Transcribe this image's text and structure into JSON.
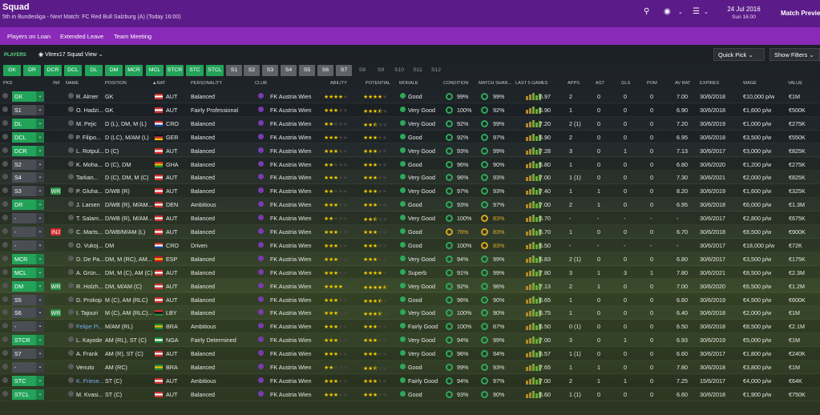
{
  "top": {
    "title": "Squad",
    "subtitle": "5th in Bundesliga - Next Match: FC Red Bull Salzburg (A) (Today 16:00)",
    "date": "24 Jul 2016",
    "day": "Sun 16:00",
    "continue": "Match Previe"
  },
  "subnav": [
    "Players on Loan",
    "Extended Leave",
    "Team Meeting"
  ],
  "toolbar": {
    "label": "PLAYERS",
    "view": "Vitrex17 Squad View",
    "quick_pick": "Quick Pick",
    "show_filters": "Show Filters"
  },
  "filters": [
    {
      "l": "GK",
      "t": "g"
    },
    {
      "l": "DR",
      "t": "g"
    },
    {
      "l": "DCR",
      "t": "g"
    },
    {
      "l": "DCL",
      "t": "g"
    },
    {
      "l": "DL",
      "t": "g"
    },
    {
      "l": "DM",
      "t": "g"
    },
    {
      "l": "MCR",
      "t": "g"
    },
    {
      "l": "MCL",
      "t": "g"
    },
    {
      "l": "STCR",
      "t": "g"
    },
    {
      "l": "STC",
      "t": "g"
    },
    {
      "l": "STCL",
      "t": "g"
    },
    {
      "l": "S1",
      "t": "s"
    },
    {
      "l": "S2",
      "t": "s"
    },
    {
      "l": "S3",
      "t": "s"
    },
    {
      "l": "S4",
      "t": "s"
    },
    {
      "l": "S5",
      "t": "s"
    },
    {
      "l": "S6",
      "t": "s"
    },
    {
      "l": "S7",
      "t": "s"
    },
    {
      "l": "S8",
      "t": "d"
    },
    {
      "l": "S9",
      "t": "d"
    },
    {
      "l": "S10",
      "t": "d"
    },
    {
      "l": "S11",
      "t": "d"
    },
    {
      "l": "S12",
      "t": "d"
    }
  ],
  "headers": [
    "PKD",
    "INF",
    "NAME",
    "POSITION",
    "▲NAT",
    "PERSONALITY",
    "CLUB",
    "ABILITY",
    "POTENTIAL",
    "MORALE",
    "CONDITION",
    "MATCH SHAR...",
    "LAST 5 GAMES",
    "APPS",
    "AST",
    "GLS",
    "POM",
    "AV RAT",
    "EXPIRES",
    "WAGE",
    "VALUE"
  ],
  "players": [
    {
      "sel": "GK",
      "g": 1,
      "inf": "",
      "name": "R. Almer",
      "pos": "GK",
      "nat": "AUT",
      "pers": "Balanced",
      "club": "FK Austria Wien",
      "ab": 4,
      "pot": 4,
      "mor": "Good",
      "cond": "99%",
      "share": "99%",
      "y": 0,
      "last": "6.97",
      "apps": "2",
      "ast": "0",
      "gls": "0",
      "pom": "0",
      "rat": "7.00",
      "exp": "30/6/2018",
      "wage": "€10,000 p/w",
      "val": "€1M"
    },
    {
      "sel": "S1",
      "g": 0,
      "inf": "",
      "name": "O. Hadzi...",
      "pos": "GK",
      "nat": "AUT",
      "pers": "Fairly Professional",
      "club": "FK Austria Wien",
      "ab": 3,
      "pot": 3.5,
      "mor": "Very Good",
      "cond": "100%",
      "share": "92%",
      "y": 0,
      "last": "6.90",
      "apps": "1",
      "ast": "0",
      "gls": "0",
      "pom": "0",
      "rat": "6.90",
      "exp": "30/6/2018",
      "wage": "€1,600 p/w",
      "val": "€500K"
    },
    {
      "sel": "DL",
      "g": 1,
      "inf": "",
      "name": "M. Pejic",
      "pos": "D (L), DM, M (L)",
      "nat": "CRO",
      "pers": "Balanced",
      "club": "FK Austria Wien",
      "ab": 2,
      "pot": 2.5,
      "mor": "Very Good",
      "cond": "92%",
      "share": "99%",
      "y": 0,
      "last": "7.20",
      "apps": "2 (1)",
      "ast": "0",
      "gls": "0",
      "pom": "0",
      "rat": "7.20",
      "exp": "30/6/2019",
      "wage": "€1,000 p/w",
      "val": "€275K"
    },
    {
      "sel": "DCL",
      "g": 1,
      "inf": "",
      "name": "P. Filipo...",
      "pos": "D (LC), M/AM (L)",
      "nat": "GER",
      "pers": "Balanced",
      "club": "FK Austria Wien",
      "ab": 3,
      "pot": 3,
      "mor": "Good",
      "cond": "92%",
      "share": "97%",
      "y": 0,
      "last": "6.90",
      "apps": "2",
      "ast": "0",
      "gls": "0",
      "pom": "0",
      "rat": "6.95",
      "exp": "30/6/2018",
      "wage": "€3,500 p/w",
      "val": "€550K"
    },
    {
      "sel": "DCR",
      "g": 1,
      "inf": "",
      "name": "L. Rotpul...",
      "pos": "D (C)",
      "nat": "AUT",
      "pers": "Balanced",
      "club": "FK Austria Wien",
      "ab": 3,
      "pot": 3,
      "mor": "Very Good",
      "cond": "93%",
      "share": "99%",
      "y": 0,
      "last": "7.28",
      "apps": "3",
      "ast": "0",
      "gls": "1",
      "pom": "0",
      "rat": "7.13",
      "exp": "30/6/2017",
      "wage": "€3,000 p/w",
      "val": "€825K"
    },
    {
      "sel": "S2",
      "g": 0,
      "inf": "",
      "name": "K. Moha...",
      "pos": "D (C), DM",
      "nat": "GHA",
      "pers": "Balanced",
      "club": "FK Austria Wien",
      "ab": 2,
      "pot": 3,
      "mor": "Good",
      "cond": "96%",
      "share": "90%",
      "y": 0,
      "last": "6.80",
      "apps": "1",
      "ast": "0",
      "gls": "0",
      "pom": "0",
      "rat": "6.80",
      "exp": "30/6/2020",
      "wage": "€1,200 p/w",
      "val": "€275K"
    },
    {
      "sel": "S4",
      "g": 0,
      "inf": "",
      "name": "Tarkan...",
      "pos": "D (C), DM, M (C)",
      "nat": "AUT",
      "pers": "Balanced",
      "club": "FK Austria Wien",
      "ab": 3,
      "pot": 3,
      "mor": "Very Good",
      "cond": "96%",
      "share": "93%",
      "y": 0,
      "last": "7.00",
      "apps": "1 (1)",
      "ast": "0",
      "gls": "0",
      "pom": "0",
      "rat": "7.30",
      "exp": "30/6/2021",
      "wage": "€2,000 p/w",
      "val": "€825K"
    },
    {
      "sel": "S3",
      "g": 0,
      "inf": "WR",
      "name": "P. Gluha...",
      "pos": "D/WB (R)",
      "nat": "AUT",
      "pers": "Balanced",
      "club": "FK Austria Wien",
      "ab": 2,
      "pot": 3,
      "mor": "Very Good",
      "cond": "97%",
      "share": "93%",
      "y": 0,
      "last": "7.40",
      "apps": "1",
      "ast": "1",
      "gls": "0",
      "pom": "0",
      "rat": "8.20",
      "exp": "30/6/2019",
      "wage": "€1,600 p/w",
      "val": "€325K"
    },
    {
      "sel": "DR",
      "g": 1,
      "inf": "",
      "name": "J. Larsen",
      "pos": "D/WB (R), M/AM...",
      "nat": "DEN",
      "pers": "Ambitious",
      "club": "FK Austria Wien",
      "ab": 3,
      "pot": 3,
      "mor": "Good",
      "cond": "93%",
      "share": "97%",
      "y": 0,
      "last": "7.00",
      "apps": "2",
      "ast": "1",
      "gls": "0",
      "pom": "0",
      "rat": "6.95",
      "exp": "30/6/2018",
      "wage": "€6,000 p/w",
      "val": "€1.3M"
    },
    {
      "sel": "-",
      "g": 0,
      "inf": "",
      "name": "T. Salam...",
      "pos": "D/WB (R), M/AM...",
      "nat": "AUT",
      "pers": "Balanced",
      "club": "FK Austria Wien",
      "ab": 2,
      "pot": 2.5,
      "mor": "Very Good",
      "cond": "100%",
      "share": "83%",
      "y": 1,
      "last": "6.70",
      "apps": "-",
      "ast": "-",
      "gls": "-",
      "pom": "-",
      "rat": "-",
      "exp": "30/6/2017",
      "wage": "€2,800 p/w",
      "val": "€675K"
    },
    {
      "sel": "-",
      "g": 0,
      "inf": "INJ",
      "name": "C. Marts...",
      "pos": "D/WB/M/AM (L)",
      "nat": "AUT",
      "pers": "Balanced",
      "club": "FK Austria Wien",
      "ab": 3,
      "pot": 3,
      "mor": "Good",
      "cond": "76%",
      "share": "83%",
      "y": 1,
      "last": "6.70",
      "apps": "1",
      "ast": "0",
      "gls": "0",
      "pom": "0",
      "rat": "6.70",
      "exp": "30/6/2018",
      "wage": "€8,500 p/w",
      "val": "€900K"
    },
    {
      "sel": "-",
      "g": 0,
      "inf": "",
      "name": "O. Vukoj...",
      "pos": "DM",
      "nat": "CRO",
      "pers": "Driven",
      "club": "FK Austria Wien",
      "ab": 3,
      "pot": 3,
      "mor": "Good",
      "cond": "100%",
      "share": "83%",
      "y": 1,
      "last": "6.50",
      "apps": "-",
      "ast": "-",
      "gls": "-",
      "pom": "-",
      "rat": "-",
      "exp": "30/6/2017",
      "wage": "€18,000 p/w",
      "val": "€72K"
    },
    {
      "sel": "MCR",
      "g": 1,
      "inf": "",
      "name": "D. De Pa...",
      "pos": "DM, M (RC), AM...",
      "nat": "ESP",
      "pers": "Balanced",
      "club": "FK Austria Wien",
      "ab": 3,
      "pot": 3,
      "mor": "Very Good",
      "cond": "94%",
      "share": "99%",
      "y": 0,
      "last": "6.83",
      "apps": "2 (1)",
      "ast": "0",
      "gls": "0",
      "pom": "0",
      "rat": "6.80",
      "exp": "30/6/2017",
      "wage": "€3,500 p/w",
      "val": "€175K"
    },
    {
      "sel": "MCL",
      "g": 1,
      "inf": "",
      "name": "A. Grün...",
      "pos": "DM, M (C), AM (C)",
      "nat": "AUT",
      "pers": "Balanced",
      "club": "FK Austria Wien",
      "ab": 3,
      "pot": 4,
      "mor": "Superb",
      "cond": "91%",
      "share": "99%",
      "y": 0,
      "last": "7.80",
      "apps": "3",
      "ast": "1",
      "gls": "3",
      "pom": "1",
      "rat": "7.80",
      "exp": "30/6/2021",
      "wage": "€8,500 p/w",
      "val": "€2.3M"
    },
    {
      "sel": "DM",
      "g": 1,
      "inf": "WR",
      "name": "R. Holzh...",
      "pos": "DM, M/AM (C)",
      "nat": "AUT",
      "pers": "Balanced",
      "club": "FK Austria Wien",
      "ab": 4,
      "pot": 4.5,
      "mor": "Very Good",
      "cond": "92%",
      "share": "96%",
      "y": 0,
      "last": "7.13",
      "apps": "2",
      "ast": "1",
      "gls": "0",
      "pom": "0",
      "rat": "7.00",
      "exp": "30/6/2020",
      "wage": "€6,500 p/w",
      "val": "€1.2M"
    },
    {
      "sel": "S5",
      "g": 0,
      "inf": "",
      "name": "D. Prokop",
      "pos": "M (C), AM (RLC)",
      "nat": "AUT",
      "pers": "Balanced",
      "club": "FK Austria Wien",
      "ab": 3,
      "pot": 3.5,
      "mor": "Good",
      "cond": "96%",
      "share": "90%",
      "y": 0,
      "last": "6.65",
      "apps": "1",
      "ast": "0",
      "gls": "0",
      "pom": "0",
      "rat": "6.60",
      "exp": "30/6/2019",
      "wage": "€4,500 p/w",
      "val": "€600K"
    },
    {
      "sel": "S6",
      "g": 0,
      "inf": "WR",
      "name": "I. Tajouri",
      "pos": "M (C), AM (RLC)...",
      "nat": "LBY",
      "pers": "Balanced",
      "club": "FK Austria Wien",
      "ab": 3,
      "pot": 3.5,
      "mor": "Very Good",
      "cond": "100%",
      "share": "90%",
      "y": 0,
      "last": "6.75",
      "apps": "1",
      "ast": "0",
      "gls": "0",
      "pom": "0",
      "rat": "6.40",
      "exp": "30/6/2018",
      "wage": "€2,000 p/w",
      "val": "€1M"
    },
    {
      "sel": "-",
      "g": 0,
      "inf": "",
      "name": "Felipe Pi...",
      "pos": "M/AM (RL)",
      "nat": "BRA",
      "pers": "Ambitious",
      "club": "FK Austria Wien",
      "ab": 3,
      "pot": 3,
      "mor": "Fairly Good",
      "cond": "100%",
      "share": "87%",
      "y": 0,
      "last": "6.50",
      "apps": "0 (1)",
      "ast": "0",
      "gls": "0",
      "pom": "0",
      "rat": "6.50",
      "exp": "30/6/2018",
      "wage": "€8,500 p/w",
      "val": "€2.1M"
    },
    {
      "sel": "STCR",
      "g": 1,
      "inf": "",
      "name": "L. Kayode",
      "pos": "AM (RL), ST (C)",
      "nat": "NGA",
      "pers": "Fairly Determined",
      "club": "FK Austria Wien",
      "ab": 3,
      "pot": 3,
      "mor": "Very Good",
      "cond": "94%",
      "share": "99%",
      "y": 0,
      "last": "7.00",
      "apps": "3",
      "ast": "0",
      "gls": "1",
      "pom": "0",
      "rat": "6.93",
      "exp": "30/6/2019",
      "wage": "€5,000 p/w",
      "val": "€1M"
    },
    {
      "sel": "S7",
      "g": 0,
      "inf": "",
      "name": "A. Frank",
      "pos": "AM (R), ST (C)",
      "nat": "AUT",
      "pers": "Balanced",
      "club": "FK Austria Wien",
      "ab": 3,
      "pot": 3,
      "mor": "Very Good",
      "cond": "96%",
      "share": "94%",
      "y": 0,
      "last": "6.57",
      "apps": "1 (1)",
      "ast": "0",
      "gls": "0",
      "pom": "0",
      "rat": "6.60",
      "exp": "30/6/2017",
      "wage": "€1,800 p/w",
      "val": "€240K"
    },
    {
      "sel": "-",
      "g": 0,
      "inf": "",
      "name": "Venuto",
      "pos": "AM (RC)",
      "nat": "BRA",
      "pers": "Balanced",
      "club": "FK Austria Wien",
      "ab": 2,
      "pot": 2.5,
      "mor": "Good",
      "cond": "99%",
      "share": "93%",
      "y": 0,
      "last": "7.65",
      "apps": "1",
      "ast": "1",
      "gls": "0",
      "pom": "0",
      "rat": "7.80",
      "exp": "30/6/2018",
      "wage": "€3,800 p/w",
      "val": "€1M"
    },
    {
      "sel": "STC",
      "g": 1,
      "inf": "",
      "name": "K. Friese...",
      "pos": "ST (C)",
      "nat": "AUT",
      "pers": "Ambitious",
      "club": "FK Austria Wien",
      "ab": 3,
      "pot": 3,
      "mor": "Fairly Good",
      "cond": "94%",
      "share": "97%",
      "y": 0,
      "last": "7.00",
      "apps": "2",
      "ast": "1",
      "gls": "1",
      "pom": "0",
      "rat": "7.25",
      "exp": "15/6/2017",
      "wage": "€4,000 p/w",
      "val": "€64K"
    },
    {
      "sel": "STCL",
      "g": 1,
      "inf": "",
      "name": "M. Kvasi...",
      "pos": "ST (C)",
      "nat": "AUT",
      "pers": "Balanced",
      "club": "FK Austria Wien",
      "ab": 3,
      "pot": 3,
      "mor": "Good",
      "cond": "93%",
      "share": "90%",
      "y": 0,
      "last": "6.60",
      "apps": "1 (1)",
      "ast": "0",
      "gls": "0",
      "pom": "0",
      "rat": "6.60",
      "exp": "30/6/2018",
      "wage": "€1,900 p/w",
      "val": "€750K"
    }
  ]
}
